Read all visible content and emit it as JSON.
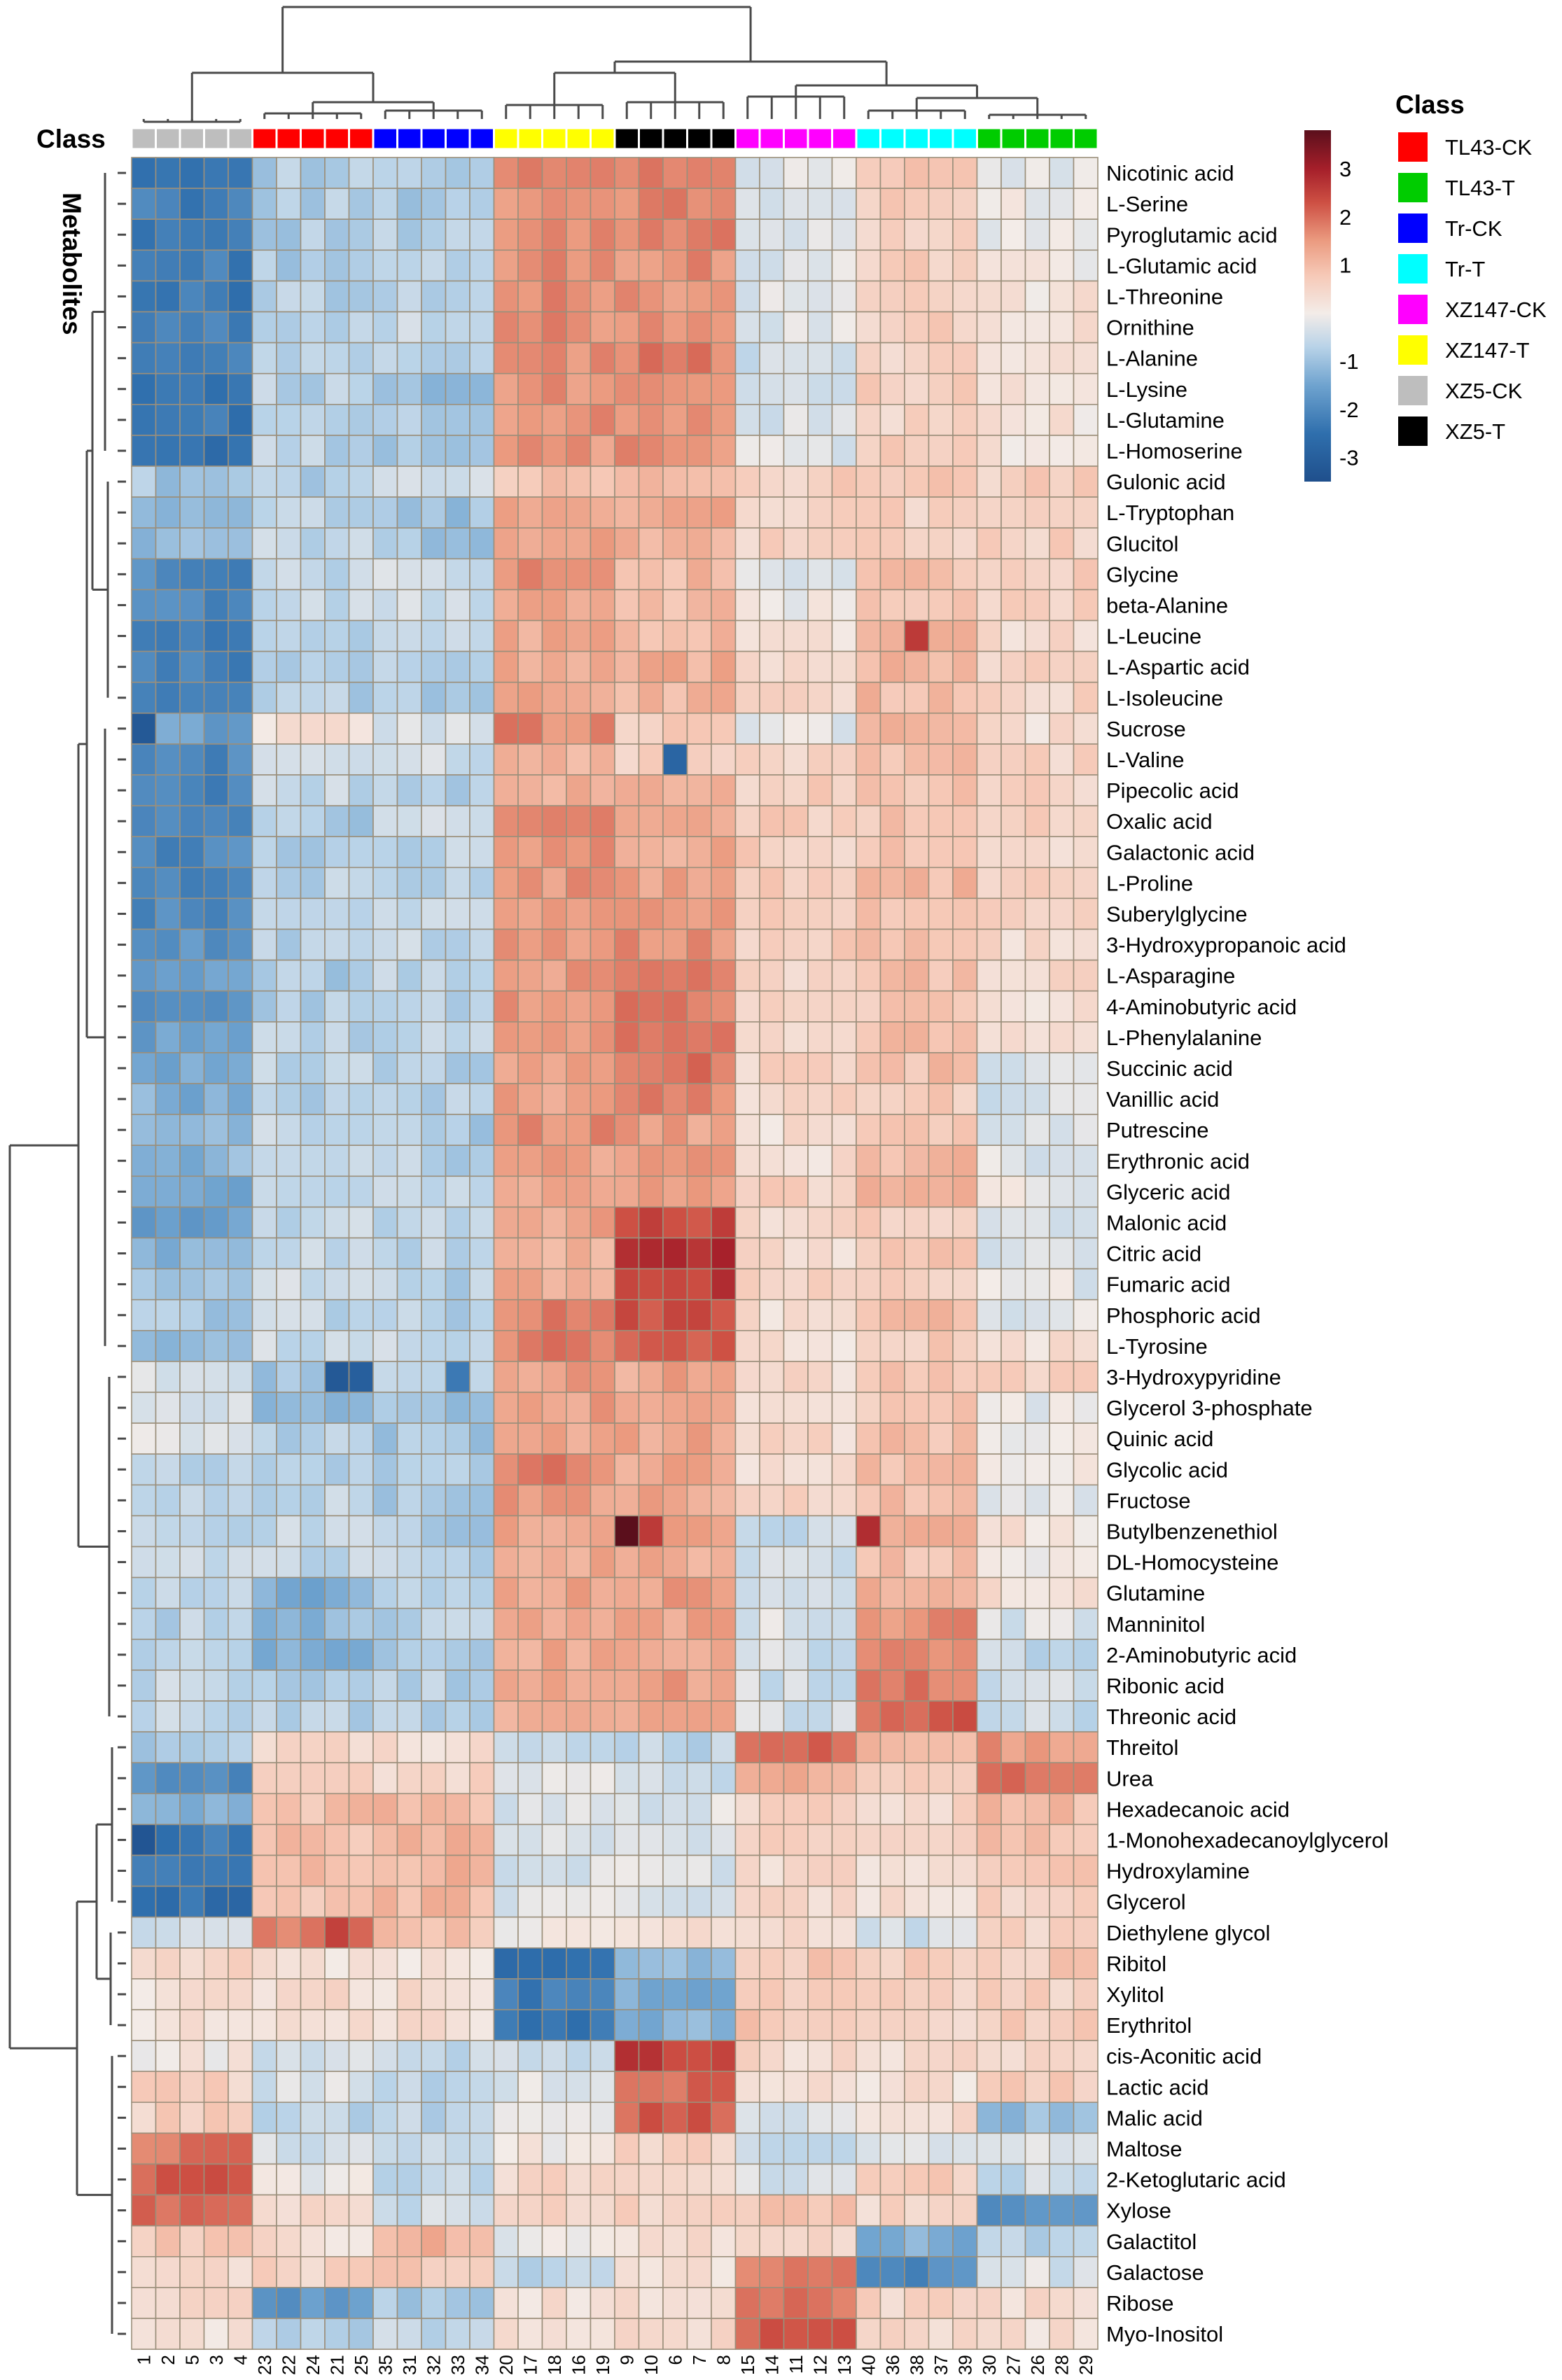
{
  "chart_data": {
    "type": "heatmap",
    "title": "",
    "class_label": "Class",
    "row_axis_title": "Metabolites",
    "legend_title": "Class",
    "color_scale": {
      "min": -3.5,
      "max": 3.8,
      "ticks": [
        "3",
        "2",
        "1",
        "-1",
        "-2",
        "-3"
      ],
      "tick_values": [
        3,
        2,
        1,
        -1,
        -2,
        -3
      ],
      "stops": [
        {
          "v": -3.5,
          "c": "#1f4f8c"
        },
        {
          "v": -2.5,
          "c": "#2f6fad"
        },
        {
          "v": -1.5,
          "c": "#6fa3cf"
        },
        {
          "v": -0.7,
          "c": "#b9d3e8"
        },
        {
          "v": 0.0,
          "c": "#f3ece8"
        },
        {
          "v": 0.8,
          "c": "#f6c8b6"
        },
        {
          "v": 1.5,
          "c": "#eb9b80"
        },
        {
          "v": 2.3,
          "c": "#cd4f43"
        },
        {
          "v": 3.0,
          "c": "#a51f2a"
        },
        {
          "v": 3.8,
          "c": "#5b0f1c"
        }
      ]
    },
    "classes": [
      {
        "name": "TL43-CK",
        "color": "#ff0000"
      },
      {
        "name": "TL43-T",
        "color": "#00cc00"
      },
      {
        "name": "Tr-CK",
        "color": "#0000ff"
      },
      {
        "name": "Tr-T",
        "color": "#00ffff"
      },
      {
        "name": "XZ147-CK",
        "color": "#ff00ff"
      },
      {
        "name": "XZ147-T",
        "color": "#ffff00"
      },
      {
        "name": "XZ5-CK",
        "color": "#bebebe"
      },
      {
        "name": "XZ5-T",
        "color": "#000000"
      }
    ],
    "columns": [
      "1",
      "2",
      "5",
      "3",
      "4",
      "23",
      "22",
      "24",
      "21",
      "25",
      "35",
      "31",
      "32",
      "33",
      "34",
      "20",
      "17",
      "18",
      "16",
      "19",
      "9",
      "10",
      "6",
      "7",
      "8",
      "15",
      "14",
      "11",
      "12",
      "13",
      "40",
      "36",
      "38",
      "37",
      "39",
      "30",
      "27",
      "26",
      "28",
      "29"
    ],
    "column_class": [
      "XZ5-CK",
      "XZ5-CK",
      "XZ5-CK",
      "XZ5-CK",
      "XZ5-CK",
      "TL43-CK",
      "TL43-CK",
      "TL43-CK",
      "TL43-CK",
      "TL43-CK",
      "Tr-CK",
      "Tr-CK",
      "Tr-CK",
      "Tr-CK",
      "Tr-CK",
      "XZ147-T",
      "XZ147-T",
      "XZ147-T",
      "XZ147-T",
      "XZ147-T",
      "XZ5-T",
      "XZ5-T",
      "XZ5-T",
      "XZ5-T",
      "XZ5-T",
      "XZ147-CK",
      "XZ147-CK",
      "XZ147-CK",
      "XZ147-CK",
      "XZ147-CK",
      "Tr-T",
      "Tr-T",
      "Tr-T",
      "Tr-T",
      "Tr-T",
      "TL43-T",
      "TL43-T",
      "TL43-T",
      "TL43-T",
      "TL43-T"
    ],
    "rows": [
      "Nicotinic acid",
      "L-Serine",
      "Pyroglutamic acid",
      "L-Glutamic acid",
      "L-Threonine",
      "Ornithine",
      "L-Alanine",
      "L-Lysine",
      "L-Glutamine",
      "L-Homoserine",
      "Gulonic acid",
      "L-Tryptophan",
      "Glucitol",
      "Glycine",
      "beta-Alanine",
      "L-Leucine",
      "L-Aspartic acid",
      "L-Isoleucine",
      "Sucrose",
      "L-Valine",
      "Pipecolic acid",
      "Oxalic acid",
      "Galactonic acid",
      "L-Proline",
      "Suberylglycine",
      "3-Hydroxypropanoic acid",
      "L-Asparagine",
      "4-Aminobutyric acid",
      "L-Phenylalanine",
      "Succinic acid",
      "Vanillic acid",
      "Putrescine",
      "Erythronic acid",
      "Glyceric acid",
      "Malonic acid",
      "Citric acid",
      "Fumaric acid",
      "Phosphoric acid",
      "L-Tyrosine",
      "3-Hydroxypyridine",
      "Glycerol 3-phosphate",
      "Quinic acid",
      "Glycolic acid",
      "Fructose",
      "Butylbenzenethiol",
      "DL-Homocysteine",
      "Glutamine",
      "Manninitol",
      "2-Aminobutyric acid",
      "Ribonic acid",
      "Threonic acid",
      "Threitol",
      "Urea",
      "Hexadecanoic acid",
      "1-Monohexadecanoylglycerol",
      "Hydroxylamine",
      "Glycerol",
      "Diethylene glycol",
      "Ribitol",
      "Xylitol",
      "Erythritol",
      "cis-Aconitic acid",
      "Lactic acid",
      "Malic acid",
      "Maltose",
      "2-Ketoglutaric acid",
      "Xylose",
      "Galactitol",
      "Galactose",
      "Ribose",
      "Myo-Inositol"
    ],
    "group_means": [
      [
        -2.2,
        -0.8,
        -0.8,
        1.6,
        1.8,
        -0.3,
        0.8,
        -0.2
      ],
      [
        -2.2,
        -0.8,
        -0.8,
        1.6,
        1.7,
        -0.3,
        0.6,
        0.0
      ],
      [
        -2.2,
        -0.8,
        -0.8,
        1.6,
        1.7,
        -0.3,
        0.6,
        0.0
      ],
      [
        -2.2,
        -0.8,
        -0.8,
        1.6,
        1.6,
        -0.3,
        0.6,
        0.0
      ],
      [
        -2.3,
        -0.7,
        -0.7,
        1.6,
        1.6,
        -0.3,
        0.6,
        0.2
      ],
      [
        -2.2,
        -0.6,
        -0.6,
        1.6,
        1.7,
        -0.2,
        0.6,
        0.3
      ],
      [
        -2.3,
        -0.7,
        -0.7,
        1.6,
        1.8,
        -0.4,
        0.6,
        0.1
      ],
      [
        -2.3,
        -0.7,
        -1.0,
        1.6,
        1.7,
        -0.3,
        0.6,
        0.1
      ],
      [
        -2.3,
        -0.8,
        -0.9,
        1.6,
        1.6,
        -0.3,
        0.5,
        0.2
      ],
      [
        -2.4,
        -0.7,
        -0.8,
        1.5,
        1.6,
        -0.2,
        0.6,
        0.2
      ],
      [
        -0.9,
        -0.8,
        -0.3,
        0.8,
        1.2,
        0.6,
        0.8,
        0.6
      ],
      [
        -1.3,
        -0.7,
        -1.0,
        1.4,
        1.2,
        0.6,
        0.6,
        0.6
      ],
      [
        -1.1,
        -0.6,
        -0.9,
        1.3,
        1.2,
        0.5,
        0.6,
        0.6
      ],
      [
        -2.0,
        -0.6,
        -0.4,
        1.6,
        1.0,
        -0.3,
        0.9,
        0.6
      ],
      [
        -2.0,
        -0.6,
        -0.4,
        1.2,
        1.0,
        0.0,
        0.9,
        0.6
      ],
      [
        -2.2,
        -0.8,
        -0.7,
        1.2,
        1.0,
        0.3,
        1.2,
        0.4
      ],
      [
        -2.2,
        -0.8,
        -0.7,
        1.3,
        1.2,
        0.5,
        1.0,
        0.5
      ],
      [
        -2.1,
        -0.8,
        -0.8,
        1.3,
        1.1,
        0.4,
        1.0,
        0.5
      ],
      [
        -1.6,
        0.3,
        -0.3,
        1.7,
        0.7,
        -0.2,
        1.0,
        0.3
      ],
      [
        -2.0,
        -0.6,
        -0.4,
        1.1,
        0.6,
        0.6,
        0.9,
        0.5
      ],
      [
        -2.1,
        -0.6,
        -0.7,
        1.1,
        1.2,
        0.6,
        0.8,
        0.6
      ],
      [
        -2.1,
        -0.8,
        -0.5,
        1.6,
        1.3,
        0.7,
        0.8,
        0.6
      ],
      [
        -2.0,
        -0.8,
        -0.6,
        1.5,
        1.3,
        0.6,
        0.8,
        0.5
      ],
      [
        -2.0,
        -0.7,
        -0.6,
        1.5,
        1.3,
        0.6,
        1.0,
        0.5
      ],
      [
        -2.0,
        -0.7,
        -0.5,
        1.5,
        1.5,
        0.6,
        0.9,
        0.5
      ],
      [
        -1.8,
        -0.7,
        -0.6,
        1.5,
        1.6,
        0.6,
        0.9,
        0.4
      ],
      [
        -1.7,
        -0.8,
        -0.7,
        1.5,
        1.8,
        0.5,
        0.9,
        0.4
      ],
      [
        -1.7,
        -0.8,
        -0.7,
        1.5,
        1.8,
        0.5,
        0.8,
        0.3
      ],
      [
        -1.6,
        -0.7,
        -0.6,
        1.5,
        1.8,
        0.5,
        0.9,
        0.2
      ],
      [
        -1.4,
        -0.7,
        -0.7,
        1.3,
        1.9,
        0.5,
        0.9,
        -0.2
      ],
      [
        -1.3,
        -0.7,
        -0.7,
        1.4,
        1.7,
        0.5,
        0.7,
        -0.3
      ],
      [
        -1.2,
        -0.6,
        -0.8,
        1.6,
        1.4,
        0.3,
        0.8,
        -0.3
      ],
      [
        -1.2,
        -0.6,
        -0.7,
        1.3,
        1.6,
        0.3,
        1.0,
        -0.2
      ],
      [
        -1.3,
        -0.6,
        -0.6,
        1.2,
        1.5,
        0.6,
        1.1,
        -0.1
      ],
      [
        -1.6,
        -0.6,
        -0.7,
        1.3,
        2.4,
        0.5,
        0.7,
        -0.2
      ],
      [
        -1.2,
        -0.5,
        -0.7,
        1.2,
        2.7,
        0.4,
        0.7,
        -0.2
      ],
      [
        -1.1,
        -0.5,
        -0.7,
        1.3,
        2.6,
        0.5,
        0.7,
        -0.2
      ],
      [
        -0.9,
        -0.6,
        -0.7,
        1.7,
        2.3,
        0.3,
        1.0,
        -0.2
      ],
      [
        -1.1,
        -0.5,
        -0.6,
        1.8,
        2.1,
        0.3,
        0.7,
        0.3
      ],
      [
        -0.3,
        -1.0,
        -0.5,
        1.4,
        1.3,
        0.4,
        0.8,
        0.5
      ],
      [
        -0.4,
        -1.0,
        -0.9,
        1.4,
        1.3,
        0.3,
        0.8,
        -0.2
      ],
      [
        -0.3,
        -0.8,
        -0.9,
        1.4,
        1.3,
        0.4,
        0.9,
        -0.1
      ],
      [
        -0.6,
        -0.8,
        -0.9,
        1.8,
        1.3,
        0.4,
        0.9,
        0.0
      ],
      [
        -0.5,
        -0.6,
        -0.9,
        1.4,
        1.3,
        0.5,
        1.0,
        -0.1
      ],
      [
        -0.6,
        -0.6,
        -0.8,
        1.3,
        1.6,
        -0.6,
        1.1,
        0.2
      ],
      [
        -0.6,
        -0.6,
        -0.7,
        1.3,
        1.2,
        -0.4,
        0.9,
        0.1
      ],
      [
        -0.6,
        -1.3,
        -0.8,
        1.3,
        1.4,
        -0.4,
        1.1,
        0.3
      ],
      [
        -0.7,
        -1.1,
        -0.7,
        1.3,
        1.4,
        -0.3,
        1.6,
        -0.3
      ],
      [
        -0.6,
        -1.4,
        -0.9,
        1.3,
        1.4,
        -0.4,
        1.7,
        -0.6
      ],
      [
        -0.6,
        -0.9,
        -0.7,
        1.3,
        1.4,
        -0.4,
        1.9,
        -0.4
      ],
      [
        -0.6,
        -0.7,
        -0.7,
        1.3,
        1.4,
        -0.4,
        2.1,
        -0.5
      ],
      [
        -0.8,
        0.4,
        0.3,
        -0.6,
        -0.6,
        2.0,
        1.0,
        1.5
      ],
      [
        -1.9,
        0.5,
        0.5,
        -0.3,
        -0.5,
        1.1,
        0.6,
        2.0
      ],
      [
        -1.2,
        0.9,
        1.0,
        -0.3,
        -0.3,
        0.6,
        0.5,
        1.0
      ],
      [
        -2.3,
        0.9,
        1.1,
        -0.2,
        -0.2,
        0.5,
        0.4,
        0.9
      ],
      [
        -2.4,
        0.9,
        1.1,
        -0.3,
        -0.3,
        0.4,
        0.4,
        0.7
      ],
      [
        -2.5,
        0.9,
        1.0,
        -0.3,
        -0.3,
        0.4,
        0.3,
        0.6
      ],
      [
        -0.4,
        1.8,
        0.9,
        0.1,
        0.3,
        0.5,
        -0.4,
        0.6
      ],
      [
        0.5,
        0.3,
        0.2,
        -2.4,
        -1.2,
        0.7,
        0.6,
        0.7
      ],
      [
        0.2,
        0.4,
        0.3,
        -2.3,
        -1.3,
        0.7,
        0.6,
        0.6
      ],
      [
        0.2,
        0.3,
        0.3,
        -2.3,
        -1.2,
        0.8,
        0.6,
        0.6
      ],
      [
        0.1,
        -0.4,
        -0.6,
        -0.5,
        2.5,
        0.4,
        0.4,
        0.4
      ],
      [
        0.6,
        -0.3,
        -0.6,
        -0.3,
        2.0,
        0.2,
        0.3,
        0.6
      ],
      [
        0.6,
        -0.6,
        -0.7,
        -0.3,
        2.1,
        -0.3,
        0.3,
        -1.1
      ],
      [
        1.9,
        -0.3,
        -0.7,
        0.1,
        0.5,
        -0.7,
        -0.2,
        -0.3
      ],
      [
        2.2,
        -0.1,
        -0.6,
        0.5,
        0.5,
        -0.4,
        0.6,
        -0.5
      ],
      [
        2.1,
        0.3,
        -0.5,
        0.6,
        0.5,
        0.9,
        0.5,
        -1.9
      ],
      [
        0.7,
        0.3,
        1.1,
        -0.1,
        0.4,
        0.4,
        -1.3,
        -0.8
      ],
      [
        0.4,
        0.5,
        0.7,
        -0.6,
        0.3,
        1.7,
        -2.0,
        -0.3
      ],
      [
        0.4,
        -1.8,
        -0.8,
        0.3,
        0.4,
        1.9,
        0.5,
        0.3
      ],
      [
        0.3,
        -0.7,
        -0.6,
        0.3,
        0.5,
        2.1,
        0.5,
        0.3
      ]
    ],
    "cell_overrides": [
      {
        "row": "L-Leucine",
        "col": "38",
        "value": 2.6
      },
      {
        "row": "L-Valine",
        "col": "6",
        "value": -2.8
      },
      {
        "row": "Butylbenzenethiol",
        "col": "9",
        "value": 3.8
      },
      {
        "row": "Butylbenzenethiol",
        "col": "10",
        "value": 2.6
      },
      {
        "row": "Butylbenzenethiol",
        "col": "40",
        "value": 2.8
      },
      {
        "row": "3-Hydroxypyridine",
        "col": "21",
        "value": -3.2
      },
      {
        "row": "3-Hydroxypyridine",
        "col": "25",
        "value": -3.0
      },
      {
        "row": "3-Hydroxypyridine",
        "col": "33",
        "value": -2.3
      },
      {
        "row": "1-Monohexadecanoylglycerol",
        "col": "1",
        "value": -3.3
      },
      {
        "row": "Sucrose",
        "col": "1",
        "value": -3.2
      },
      {
        "row": "Diethylene glycol",
        "col": "21",
        "value": 2.5
      },
      {
        "row": "Threitol",
        "col": "12",
        "value": 2.2
      }
    ]
  }
}
